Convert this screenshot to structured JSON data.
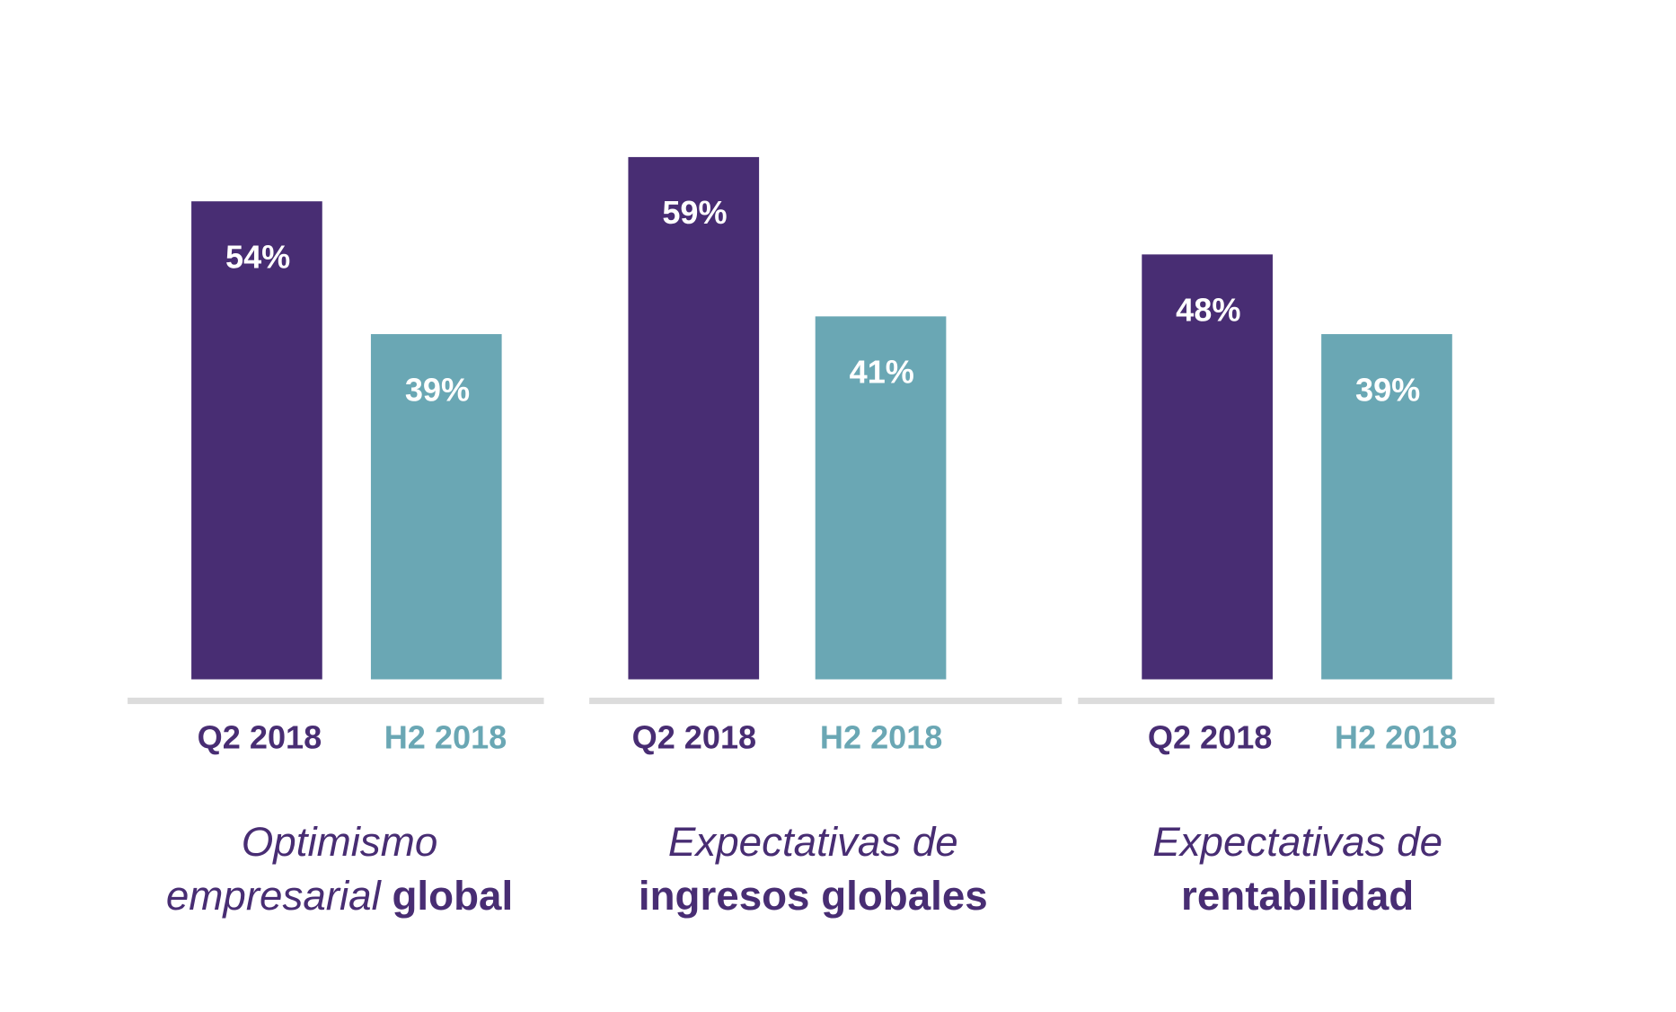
{
  "chart_data": {
    "type": "bar",
    "colors": {
      "Q2 2018": "#482d73",
      "H2 2018": "#6aa7b4"
    },
    "ylim": [
      0,
      60
    ],
    "grid": false,
    "groups": [
      {
        "title_italic": "Optimismo",
        "title_italic2": "empresarial",
        "title_bold": "global",
        "categories": [
          "Q2 2018",
          "H2 2018"
        ],
        "values": [
          54,
          39
        ],
        "labels": [
          "54%",
          "39%"
        ]
      },
      {
        "title_italic": "Expectativas de",
        "title_italic2": "",
        "title_bold": "ingresos globales",
        "categories": [
          "Q2 2018",
          "H2 2018"
        ],
        "values": [
          59,
          41
        ],
        "labels": [
          "59%",
          "41%"
        ]
      },
      {
        "title_italic": "Expectativas de",
        "title_italic2": "",
        "title_bold": "rentabilidad",
        "categories": [
          "Q2 2018",
          "H2 2018"
        ],
        "values": [
          48,
          39
        ],
        "labels": [
          "48%",
          "39%"
        ]
      }
    ]
  }
}
